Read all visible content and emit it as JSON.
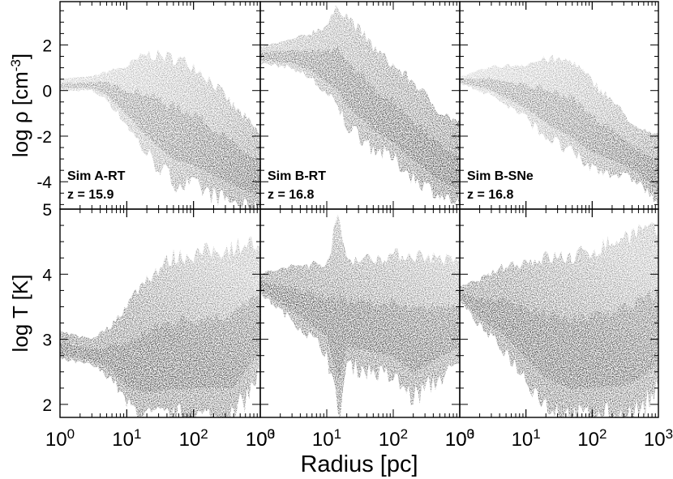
{
  "chart_data": {
    "type": "scatter",
    "xlabel": "Radius [pc]",
    "x_scale": "log",
    "xlim": [
      1,
      1000
    ],
    "x_tick_labels": [
      {
        "base": "10",
        "exp": "0"
      },
      {
        "base": "10",
        "exp": "1"
      },
      {
        "base": "10",
        "exp": "2"
      },
      {
        "base": "10",
        "exp": "3"
      }
    ],
    "rows": [
      {
        "id": "density",
        "ylabel": {
          "prefix": "log ρ [cm",
          "sup": "-3",
          "suffix": "]"
        },
        "ylim": [
          -5.2,
          3.9
        ],
        "yticks": [
          -4,
          -2,
          0,
          2
        ],
        "ytick_labels": [
          "-4",
          "-2",
          "0",
          "2"
        ]
      },
      {
        "id": "temperature",
        "ylabel": {
          "prefix": "log T [K]",
          "sup": "",
          "suffix": ""
        },
        "ylim": [
          1.8,
          5.0
        ],
        "yticks": [
          2,
          3,
          4,
          5
        ],
        "ytick_labels": [
          "2",
          "3",
          "4",
          "5"
        ]
      }
    ],
    "panels": [
      {
        "name": "Sim A-RT",
        "redshift": "z = 15.9",
        "density_envelope": [
          [
            1,
            0.0,
            0.5
          ],
          [
            3,
            0.0,
            0.6
          ],
          [
            5,
            -0.4,
            0.8
          ],
          [
            10,
            -1.5,
            1.0
          ],
          [
            20,
            -2.8,
            1.5
          ],
          [
            50,
            -4.0,
            1.3
          ],
          [
            100,
            -4.2,
            1.0
          ],
          [
            200,
            -4.6,
            0.2
          ],
          [
            400,
            -4.9,
            -0.8
          ],
          [
            700,
            -5.1,
            -1.5
          ],
          [
            1000,
            -5.2,
            -2.0
          ]
        ],
        "temperature_envelope": [
          [
            1,
            2.7,
            3.1
          ],
          [
            3,
            2.6,
            3.0
          ],
          [
            6,
            2.4,
            3.2
          ],
          [
            10,
            2.0,
            3.5
          ],
          [
            20,
            1.8,
            3.9
          ],
          [
            50,
            1.8,
            4.2
          ],
          [
            100,
            1.8,
            4.25
          ],
          [
            200,
            1.8,
            4.3
          ],
          [
            400,
            1.8,
            4.35
          ],
          [
            700,
            2.2,
            4.45
          ],
          [
            1000,
            2.5,
            4.3
          ]
        ]
      },
      {
        "name": "Sim B-RT",
        "redshift": "z = 16.8",
        "density_envelope": [
          [
            1,
            1.2,
            1.9
          ],
          [
            3,
            1.0,
            2.2
          ],
          [
            6,
            0.5,
            2.5
          ],
          [
            10,
            -0.2,
            2.8
          ],
          [
            15,
            -0.8,
            3.6
          ],
          [
            20,
            -1.5,
            3.2
          ],
          [
            50,
            -2.5,
            1.8
          ],
          [
            100,
            -3.0,
            1.0
          ],
          [
            200,
            -3.8,
            0.3
          ],
          [
            500,
            -4.6,
            -1.0
          ],
          [
            1000,
            -5.0,
            -1.5
          ]
        ],
        "temperature_envelope": [
          [
            1,
            3.7,
            4.0
          ],
          [
            3,
            3.3,
            4.1
          ],
          [
            10,
            2.8,
            4.15
          ],
          [
            15,
            1.8,
            4.8
          ],
          [
            20,
            2.6,
            4.2
          ],
          [
            50,
            2.5,
            4.2
          ],
          [
            100,
            2.4,
            4.25
          ],
          [
            200,
            2.1,
            4.25
          ],
          [
            500,
            2.4,
            4.2
          ],
          [
            1000,
            2.6,
            4.15
          ]
        ]
      },
      {
        "name": "Sim B-SNe",
        "redshift": "z = 16.8",
        "density_envelope": [
          [
            1,
            0.3,
            0.6
          ],
          [
            3,
            -0.2,
            1.0
          ],
          [
            10,
            -1.2,
            1.1
          ],
          [
            20,
            -2.0,
            1.3
          ],
          [
            50,
            -2.8,
            1.2
          ],
          [
            100,
            -3.4,
            0.3
          ],
          [
            200,
            -3.6,
            -0.5
          ],
          [
            500,
            -4.0,
            -1.8
          ],
          [
            1000,
            -5.0,
            -2.0
          ]
        ],
        "temperature_envelope": [
          [
            1,
            3.6,
            3.8
          ],
          [
            2,
            3.2,
            3.9
          ],
          [
            5,
            2.8,
            4.1
          ],
          [
            10,
            2.4,
            4.15
          ],
          [
            20,
            2.0,
            4.2
          ],
          [
            50,
            1.8,
            4.2
          ],
          [
            100,
            1.8,
            4.3
          ],
          [
            300,
            1.8,
            4.5
          ],
          [
            500,
            1.9,
            4.6
          ],
          [
            1000,
            2.2,
            4.6
          ]
        ]
      }
    ]
  }
}
